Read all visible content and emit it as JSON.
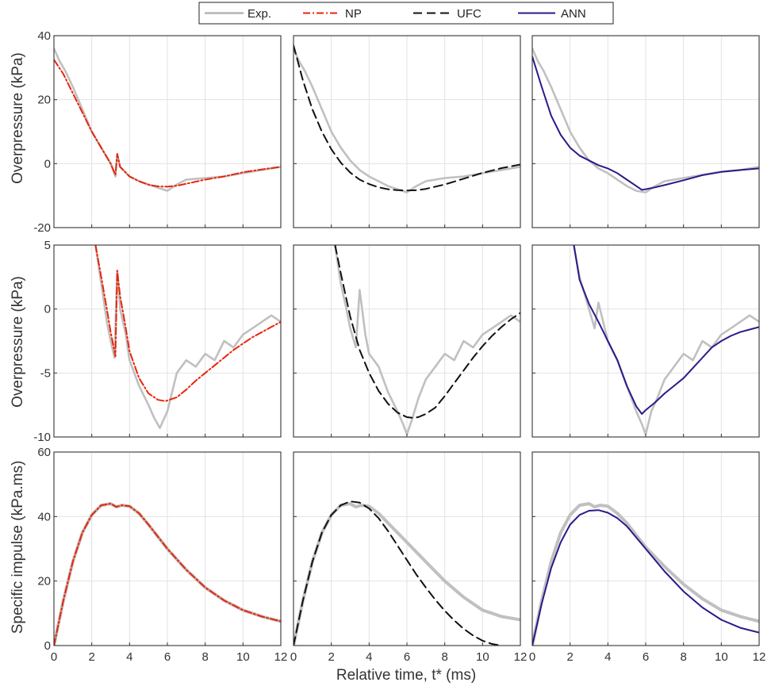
{
  "legend": {
    "entries": [
      {
        "label": "Exp.",
        "color": "#c0c0c0",
        "dash": "solid"
      },
      {
        "label": "NP",
        "color": "#e8250c",
        "dash": "dashdot"
      },
      {
        "label": "UFC",
        "color": "#111111",
        "dash": "dashed"
      },
      {
        "label": "ANN",
        "color": "#2b1a8a",
        "dash": "solid"
      }
    ]
  },
  "labels": {
    "xlabel": "Relative time, t* (ms)",
    "row_ylabels": [
      "Overpressure (kPa)",
      "Overpressure (kPa)",
      "Specific impulse (kPa.ms)"
    ]
  },
  "chart_data": {
    "type": "line",
    "grid": true,
    "layout": "3x3 grid; columns compare Exp. with NP, UFC and ANN",
    "xlim": [
      0,
      12
    ],
    "xticks": [
      0,
      2,
      4,
      6,
      8,
      10,
      12
    ],
    "rows": [
      {
        "ylim": [
          -20,
          40
        ],
        "yticks": [
          -20,
          0,
          20,
          40
        ]
      },
      {
        "ylim": [
          -10,
          5
        ],
        "yticks": [
          -10,
          -5,
          0,
          5
        ]
      },
      {
        "ylim": [
          0,
          60
        ],
        "yticks": [
          0,
          20,
          40,
          60
        ]
      }
    ],
    "panels": [
      {
        "row": 0,
        "col": 0,
        "series": [
          {
            "name": "Exp.",
            "x": [
              0,
              0.3,
              0.6,
              1,
              1.5,
              2,
              2.5,
              3,
              3.25,
              3.35,
              3.5,
              4,
              4.5,
              5,
              5.5,
              6,
              6.5,
              7,
              8,
              9,
              10,
              11,
              12
            ],
            "y": [
              36,
              32,
              29,
              24,
              17,
              10,
              5,
              0,
              -4,
              3,
              -1,
              -4,
              -5.5,
              -6.5,
              -7.5,
              -8.5,
              -6.5,
              -5,
              -4.5,
              -4,
              -3,
              -2,
              -1
            ]
          },
          {
            "name": "NP",
            "x": [
              0,
              0.5,
              1,
              1.5,
              2,
              2.5,
              3,
              3.25,
              3.35,
              3.5,
              4,
              4.5,
              5,
              5.5,
              6,
              6.5,
              7,
              8,
              9,
              10,
              11,
              12
            ],
            "y": [
              32.5,
              28,
              22,
              16,
              10,
              5,
              0,
              -3.5,
              3,
              -1,
              -4,
              -5.5,
              -6.6,
              -7.1,
              -7.2,
              -6.9,
              -6.3,
              -5,
              -4,
              -2.7,
              -1.8,
              -1
            ]
          }
        ]
      },
      {
        "row": 0,
        "col": 1,
        "series": [
          {
            "name": "Exp.",
            "x": [
              0,
              0.3,
              0.6,
              1,
              1.5,
              2,
              2.5,
              3,
              3.5,
              4,
              4.5,
              5,
              5.5,
              6,
              6.5,
              7,
              8,
              9,
              10,
              11,
              12
            ],
            "y": [
              36,
              32,
              29,
              24,
              17,
              10,
              5,
              1,
              -2,
              -4,
              -5.5,
              -7,
              -8,
              -9,
              -7,
              -5.5,
              -4.5,
              -4,
              -3,
              -2,
              -1
            ]
          },
          {
            "name": "UFC",
            "x": [
              0,
              0.5,
              1,
              1.5,
              2,
              2.5,
              3,
              3.5,
              4,
              4.5,
              5,
              5.5,
              6,
              6.5,
              7,
              8,
              9,
              10,
              11,
              12
            ],
            "y": [
              37,
              26,
              17,
              10,
              4.5,
              0.3,
              -2.8,
              -5,
              -6.4,
              -7.4,
              -8,
              -8.3,
              -8.4,
              -8.3,
              -7.9,
              -6.5,
              -4.7,
              -2.9,
              -1.4,
              -0.3
            ]
          }
        ]
      },
      {
        "row": 0,
        "col": 2,
        "series": [
          {
            "name": "Exp.",
            "x": [
              0,
              0.3,
              0.6,
              1,
              1.5,
              2,
              2.5,
              3,
              3.5,
              4,
              4.5,
              5,
              5.5,
              6,
              6.5,
              7,
              8,
              9,
              10,
              11,
              12
            ],
            "y": [
              36,
              32,
              29,
              24,
              17,
              10,
              5,
              1,
              -1.5,
              -3,
              -5,
              -7,
              -8.5,
              -9,
              -7,
              -5.5,
              -4.5,
              -3.5,
              -2.5,
              -2,
              -1
            ]
          },
          {
            "name": "ANN",
            "x": [
              0,
              0.5,
              1,
              1.5,
              2,
              2.5,
              3,
              3.5,
              4,
              4.5,
              5,
              5.5,
              5.8,
              6,
              6.5,
              7,
              8,
              9,
              10,
              11,
              12
            ],
            "y": [
              33.5,
              24,
              15,
              9,
              5,
              2.5,
              1,
              -0.5,
              -1.5,
              -3,
              -5,
              -7,
              -8.2,
              -8,
              -7.4,
              -6.7,
              -5.2,
              -3.6,
              -2.6,
              -2,
              -1.5
            ]
          }
        ]
      },
      {
        "row": 1,
        "col": 0,
        "series": [
          {
            "name": "Exp.",
            "x": [
              2.2,
              2.5,
              2.8,
              3,
              3.2,
              3.35,
              3.5,
              3.8,
              4,
              4.5,
              5,
              5.3,
              5.6,
              6,
              6.5,
              7,
              7.5,
              8,
              8.5,
              9,
              9.5,
              10,
              10.5,
              11,
              11.5,
              12
            ],
            "y": [
              5,
              2,
              -1,
              -2.5,
              -3.8,
              3,
              0,
              -2,
              -4,
              -6,
              -7.5,
              -8.5,
              -9.3,
              -8,
              -5,
              -4,
              -4.5,
              -3.5,
              -4,
              -2.5,
              -3,
              -2,
              -1.5,
              -1,
              -0.5,
              -1
            ]
          },
          {
            "name": "NP",
            "x": [
              2.2,
              2.5,
              2.8,
              3,
              3.2,
              3.25,
              3.35,
              3.5,
              3.8,
              4,
              4.5,
              5,
              5.5,
              5.9,
              6.5,
              7,
              7.5,
              8,
              8.5,
              9,
              9.5,
              10,
              10.5,
              11,
              11.5,
              12
            ],
            "y": [
              5,
              2.5,
              0,
              -1.8,
              -3.3,
              -3.7,
              3,
              1,
              -1.5,
              -3.3,
              -5.4,
              -6.6,
              -7.1,
              -7.2,
              -6.9,
              -6.3,
              -5.6,
              -5,
              -4.4,
              -3.8,
              -3.2,
              -2.7,
              -2.2,
              -1.8,
              -1.4,
              -1
            ]
          }
        ]
      },
      {
        "row": 1,
        "col": 1,
        "series": [
          {
            "name": "Exp.",
            "x": [
              2.2,
              2.5,
              2.8,
              3,
              3.3,
              3.5,
              3.8,
              4,
              4.5,
              5,
              5.5,
              5.8,
              6,
              6.3,
              6.6,
              7,
              7.5,
              8,
              8.5,
              9,
              9.5,
              10,
              10.5,
              11,
              11.5,
              12
            ],
            "y": [
              5,
              2,
              0,
              -1.5,
              -3,
              1.5,
              -2,
              -3.5,
              -4.5,
              -6.5,
              -8,
              -9,
              -9.8,
              -8.5,
              -7,
              -5.5,
              -4.5,
              -3.5,
              -4,
              -2.5,
              -3,
              -2,
              -1.5,
              -1,
              -0.5,
              -1
            ]
          },
          {
            "name": "UFC",
            "x": [
              2.2,
              2.5,
              3,
              3.5,
              4,
              4.5,
              5,
              5.5,
              6,
              6.3,
              6.6,
              7,
              7.5,
              8,
              8.5,
              9,
              9.5,
              10,
              10.5,
              11,
              11.5,
              12
            ],
            "y": [
              5,
              2.8,
              -0.6,
              -3.2,
              -5,
              -6.4,
              -7.4,
              -8.1,
              -8.45,
              -8.5,
              -8.45,
              -8.2,
              -7.7,
              -6.8,
              -5.8,
              -4.8,
              -3.8,
              -2.9,
              -2.1,
              -1.4,
              -0.8,
              -0.3
            ]
          }
        ]
      },
      {
        "row": 1,
        "col": 2,
        "series": [
          {
            "name": "Exp.",
            "x": [
              2.2,
              2.5,
              3,
              3.3,
              3.5,
              4,
              4.5,
              5,
              5.5,
              5.8,
              6,
              6.3,
              6.6,
              7,
              7.5,
              8,
              8.5,
              9,
              9.5,
              10,
              10.5,
              11,
              11.5,
              12
            ],
            "y": [
              5,
              2.5,
              0,
              -1.5,
              0.5,
              -2.5,
              -4,
              -6,
              -8,
              -9,
              -9.8,
              -8,
              -7,
              -5.5,
              -4.5,
              -3.5,
              -4,
              -2.5,
              -3,
              -2,
              -1.5,
              -1,
              -0.5,
              -1
            ]
          },
          {
            "name": "ANN",
            "x": [
              2.2,
              2.5,
              3,
              3.5,
              4,
              4.5,
              5,
              5.5,
              5.8,
              6,
              6.5,
              7,
              7.5,
              8,
              8.5,
              9,
              9.5,
              10,
              10.5,
              11,
              11.5,
              12
            ],
            "y": [
              5,
              2.3,
              0.4,
              -1,
              -2.5,
              -4,
              -6,
              -7.6,
              -8.2,
              -7.9,
              -7.3,
              -6.6,
              -6,
              -5.4,
              -4.6,
              -3.8,
              -3,
              -2.5,
              -2.1,
              -1.8,
              -1.6,
              -1.4
            ]
          }
        ]
      },
      {
        "row": 2,
        "col": 0,
        "series": [
          {
            "name": "Exp.",
            "x": [
              0,
              0.5,
              1,
              1.5,
              2,
              2.5,
              3,
              3.3,
              3.6,
              4,
              4.5,
              5,
              6,
              7,
              8,
              9,
              10,
              11,
              12
            ],
            "y": [
              0,
              14,
              26,
              35,
              40.5,
              43.5,
              44,
              43,
              43.5,
              43.2,
              41,
              37.5,
              30,
              23.5,
              18,
              14,
              11,
              9,
              7.5
            ]
          },
          {
            "name": "NP",
            "x": [
              0,
              0.5,
              1,
              1.5,
              2,
              2.5,
              3,
              3.3,
              3.6,
              4,
              4.5,
              5,
              6,
              7,
              8,
              9,
              10,
              11,
              12
            ],
            "y": [
              0,
              14,
              26,
              35,
              40.5,
              43.5,
              44,
              43,
              43.5,
              43.2,
              41,
              37.5,
              30,
              23.5,
              18,
              14,
              11,
              9,
              7.5
            ]
          }
        ]
      },
      {
        "row": 2,
        "col": 1,
        "series": [
          {
            "name": "Exp.",
            "x": [
              0,
              0.5,
              1,
              1.5,
              2,
              2.5,
              3,
              3.3,
              3.6,
              4,
              4.5,
              5,
              6,
              7,
              8,
              9,
              10,
              11,
              12
            ],
            "y": [
              0,
              14,
              26,
              35,
              40.5,
              43.5,
              44,
              43,
              43.5,
              43.2,
              41,
              38,
              32,
              26,
              20,
              15,
              11,
              9,
              8
            ]
          },
          {
            "name": "UFC",
            "x": [
              0,
              0.5,
              1,
              1.5,
              2,
              2.5,
              3,
              3.5,
              4,
              4.5,
              5,
              5.5,
              6,
              6.5,
              7,
              7.5,
              8,
              8.5,
              9,
              9.5,
              10,
              10.5,
              11
            ],
            "y": [
              0,
              14,
              26,
              35,
              40.5,
              43.5,
              44.7,
              44.3,
              42.5,
              39.5,
              35.5,
              31,
              26.5,
              22,
              18,
              14.2,
              10.8,
              7.8,
              5.2,
              3.1,
              1.5,
              0.5,
              0
            ]
          }
        ]
      },
      {
        "row": 2,
        "col": 2,
        "series": [
          {
            "name": "Exp.",
            "x": [
              0,
              0.5,
              1,
              1.5,
              2,
              2.5,
              3,
              3.3,
              3.6,
              4,
              4.5,
              5,
              6,
              7,
              8,
              9,
              10,
              11,
              12
            ],
            "y": [
              0,
              14,
              26,
              35,
              40.5,
              43.5,
              44,
              43,
              43.5,
              43.2,
              41,
              38,
              30.5,
              24.5,
              19,
              14.5,
              11,
              9,
              7.5
            ]
          },
          {
            "name": "ANN",
            "x": [
              0,
              0.5,
              1,
              1.5,
              2,
              2.5,
              3,
              3.5,
              4,
              4.5,
              5,
              6,
              7,
              8,
              9,
              10,
              11,
              12
            ],
            "y": [
              0,
              13,
              24,
              32,
              37.5,
              40.5,
              41.8,
              42,
              41.2,
              39.5,
              37,
              30,
              23,
              16.8,
              11.8,
              8,
              5.5,
              4
            ]
          }
        ]
      }
    ]
  }
}
